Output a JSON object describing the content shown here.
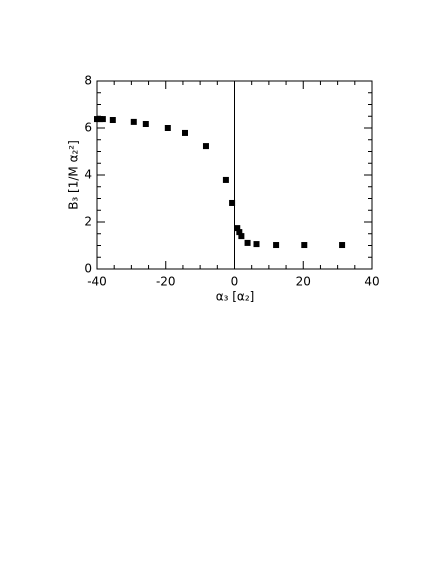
{
  "chart_data": {
    "type": "scatter",
    "xlabel": "α₃ [α₂]",
    "ylabel": "B₃ [1/M α₂²]",
    "x": [
      -40,
      -39.1,
      -38.3,
      -35.4,
      -29.3,
      -25.8,
      -19.4,
      -14.4,
      -8.3,
      -2.5,
      -0.7,
      0.8,
      1.4,
      2.0,
      3.8,
      6.4,
      12.1,
      20.3,
      31.3
    ],
    "series": [
      {
        "color": "#000000",
        "values": [
          6.38,
          6.38,
          6.38,
          6.34,
          6.26,
          6.17,
          6.0,
          5.79,
          5.23,
          3.79,
          2.81,
          1.74,
          1.57,
          1.4,
          1.11,
          1.06,
          1.02,
          1.02,
          1.02
        ]
      }
    ],
    "xlim": [
      -40,
      40
    ],
    "ylim": [
      0,
      8
    ],
    "xticks": [
      -40,
      -20,
      0,
      20,
      40
    ],
    "yticks": [
      0,
      2,
      4,
      6,
      8
    ],
    "xminorticks": [
      -35,
      -30,
      -25,
      -15,
      -10,
      -5,
      5,
      10,
      15,
      25,
      30,
      35
    ],
    "yminorticks": [
      0.5,
      1,
      1.5,
      2.5,
      3,
      3.5,
      4.5,
      5,
      5.5,
      6.5,
      7,
      7.5
    ],
    "vlines": [
      0
    ]
  }
}
